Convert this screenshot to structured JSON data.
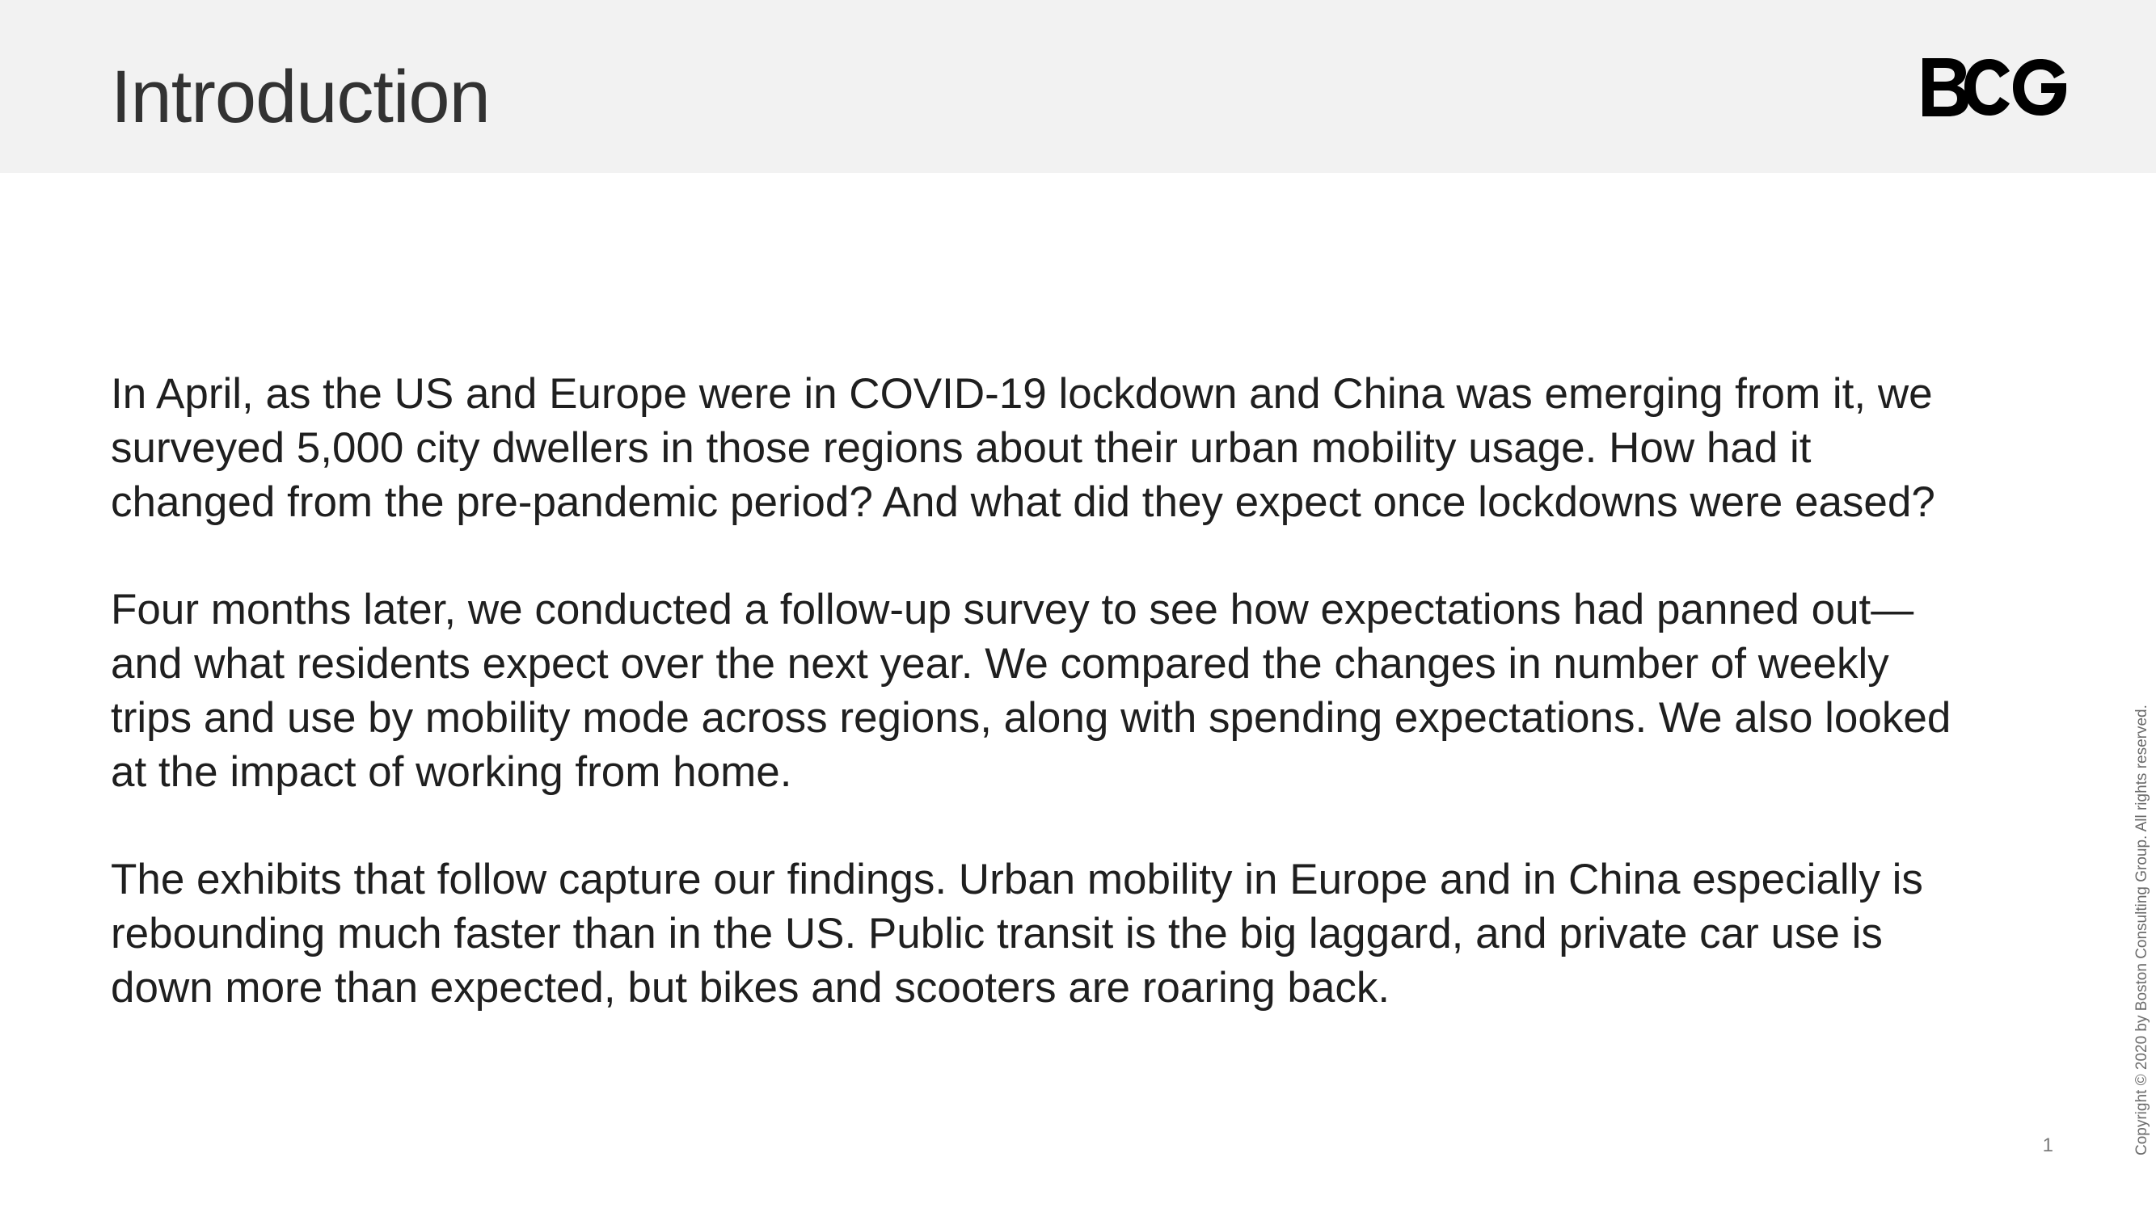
{
  "header": {
    "title": "Introduction",
    "logo_text": "BCG"
  },
  "body": {
    "paragraphs": [
      {
        "lines": [
          "In April, as the US and Europe were in COVID-19 lockdown and China was emerging from it, we",
          "surveyed 5,000 city dwellers in those regions about their urban mobility usage. How had it",
          "changed from the pre-pandemic period? And what did they expect once lockdowns were eased?"
        ]
      },
      {
        "lines": [
          "Four months later, we conducted a follow-up survey to see how expectations had panned out—",
          "and what residents expect over the next year. We compared the changes in number of weekly",
          "trips and use by mobility mode across regions, along with spending expectations. We also looked",
          "at the impact of working from home."
        ]
      },
      {
        "lines": [
          "The exhibits that follow capture our findings. Urban mobility in Europe and in China especially is",
          "rebounding much faster than in the US. Public transit is the big laggard, and private car use is",
          "down more than expected, but bikes and scooters are roaring back."
        ]
      }
    ]
  },
  "footer": {
    "copyright": "Copyright © 2020 by Boston Consulting Group. All rights reserved.",
    "page_number": "1"
  },
  "colors": {
    "header_background": "#f2f2f2",
    "title_text": "#323232",
    "body_text": "#1f1f1f",
    "logo": "#000000"
  }
}
